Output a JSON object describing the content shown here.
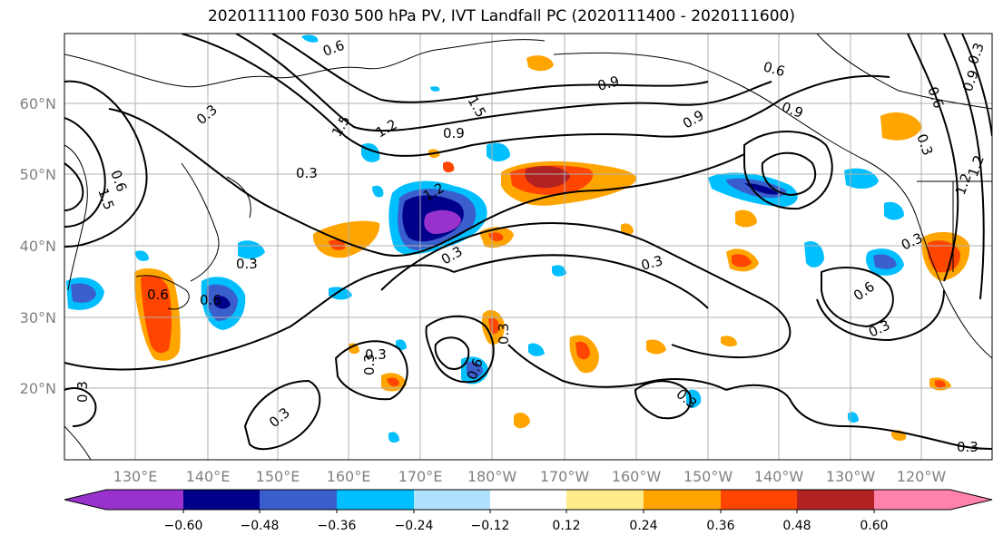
{
  "title": "2020111100 F030 500 hPa PV, IVT Landfall PC (2020111400 - 2020111600)",
  "lon_ticks": [
    "130°E",
    "140°E",
    "150°E",
    "160°E",
    "170°E",
    "180°W",
    "170°W",
    "160°W",
    "150°W",
    "140°W",
    "130°W",
    "120°W"
  ],
  "lat_ticks": [
    "20°N",
    "30°N",
    "40°N",
    "50°N",
    "60°N"
  ],
  "colorbar": {
    "colors": [
      "#9932CC",
      "#00008B",
      "#3A5FCD",
      "#00BFFF",
      "#B0E2FF",
      "#FFFFFF",
      "#FFEC8B",
      "#FFA500",
      "#FF4500",
      "#B22222",
      "#FF82AB"
    ],
    "ticks": [
      "−0.60",
      "−0.48",
      "−0.36",
      "−0.24",
      "−0.12",
      "0.12",
      "0.24",
      "0.36",
      "0.48",
      "0.60"
    ]
  },
  "contour_labels": [
    "0.6",
    "0.6",
    "0.9",
    "1.5",
    "0.3",
    "0.9",
    "1.5",
    "1.2",
    "0.9",
    "0.6",
    "0.3",
    "1.5",
    "1.2",
    "0.3",
    "0.6",
    "0.3",
    "0.3",
    "0.6",
    "0.3",
    "0.3",
    "0.3",
    "0.3",
    "0.3",
    "0.3",
    "0.3",
    "0.6",
    "0.3",
    "0.6",
    "0.3",
    "0.3",
    "1.2",
    "0.9",
    "0.6",
    "0.3",
    "0.9",
    "1.2"
  ],
  "colors": {
    "contour": "#000000",
    "grid": "#b0b0b0",
    "coast": "#000000"
  }
}
